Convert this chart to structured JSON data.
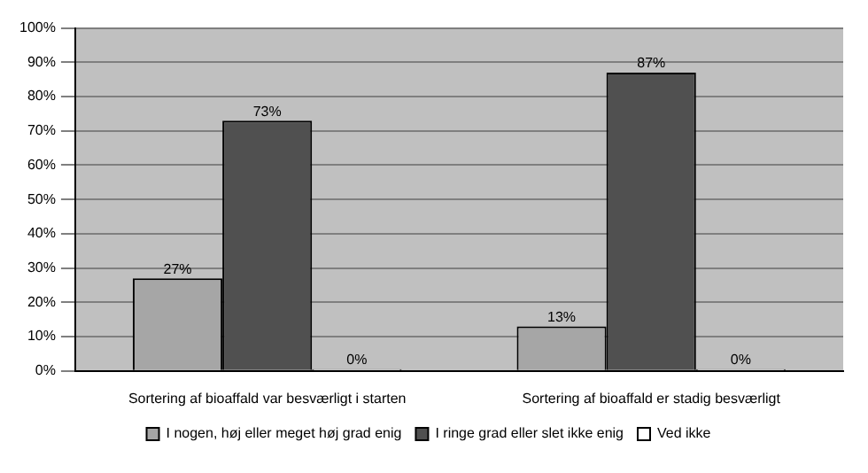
{
  "chart_data": {
    "type": "bar",
    "categories": [
      "Sortering af bioaffald var besværligt i starten",
      "Sortering af bioaffald er stadig besværligt"
    ],
    "series": [
      {
        "name": "I nogen, høj eller meget høj grad enig",
        "color": "#a6a6a6",
        "values": [
          27,
          13
        ],
        "value_labels": [
          "27%",
          "13%"
        ]
      },
      {
        "name": "I ringe grad eller slet ikke enig",
        "color": "#505050",
        "values": [
          73,
          87
        ],
        "value_labels": [
          "73%",
          "87%"
        ]
      },
      {
        "name": "Ved ikke",
        "color": "#ffffff",
        "values": [
          0,
          0
        ],
        "value_labels": [
          "0%",
          "0%"
        ]
      }
    ],
    "ylim": [
      0,
      100
    ],
    "yticks": [
      {
        "value": 0,
        "label": "0%"
      },
      {
        "value": 10,
        "label": "10%"
      },
      {
        "value": 20,
        "label": "20%"
      },
      {
        "value": 30,
        "label": "30%"
      },
      {
        "value": 40,
        "label": "40%"
      },
      {
        "value": 50,
        "label": "50%"
      },
      {
        "value": 60,
        "label": "60%"
      },
      {
        "value": 70,
        "label": "70%"
      },
      {
        "value": 80,
        "label": "80%"
      },
      {
        "value": 90,
        "label": "90%"
      },
      {
        "value": 100,
        "label": "100%"
      }
    ],
    "grid": "y",
    "legend": "bottom"
  }
}
